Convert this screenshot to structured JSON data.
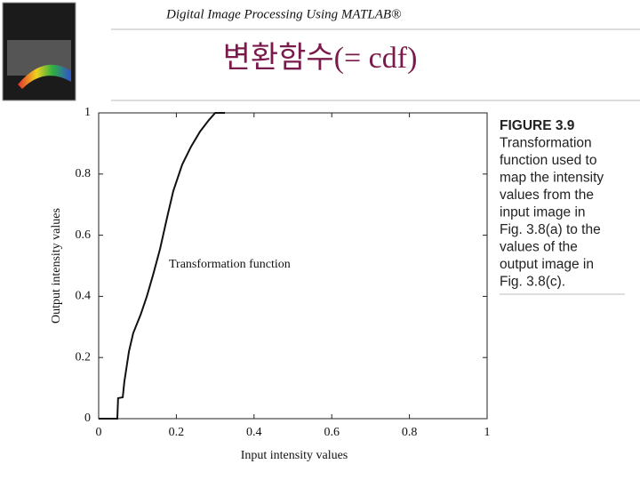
{
  "header": {
    "title": "Digital Image Processing Using MATLAB®",
    "subtitle": "변환함수(= cdf)"
  },
  "chart_data": {
    "type": "line",
    "xlabel": "Input intensity values",
    "ylabel": "Output intensity values",
    "annotation": "Transformation function",
    "x": [
      0,
      0.048,
      0.05,
      0.062,
      0.066,
      0.078,
      0.089,
      0.108,
      0.124,
      0.14,
      0.158,
      0.176,
      0.192,
      0.215,
      0.238,
      0.261,
      0.284,
      0.3,
      0.325
    ],
    "series": [
      {
        "name": "Transformation function",
        "color": "#111111",
        "values": [
          0,
          0,
          0.067,
          0.07,
          0.12,
          0.22,
          0.28,
          0.34,
          0.4,
          0.47,
          0.555,
          0.657,
          0.744,
          0.831,
          0.89,
          0.939,
          0.977,
          1,
          1
        ]
      }
    ],
    "xlim": [
      0,
      1
    ],
    "ylim": [
      0,
      1
    ],
    "xticks": [
      0,
      0.2,
      0.4,
      0.6,
      0.8,
      1
    ],
    "yticks": [
      0,
      0.2,
      0.4,
      0.6,
      0.8,
      1
    ]
  },
  "caption": {
    "label": "FIGURE 3.9",
    "lines": [
      "Transformation",
      "function used to",
      "map the intensity",
      "values from the",
      "input image in",
      "Fig. 3.8(a) to the",
      "values of the",
      "output image in",
      "Fig. 3.8(c)."
    ]
  }
}
